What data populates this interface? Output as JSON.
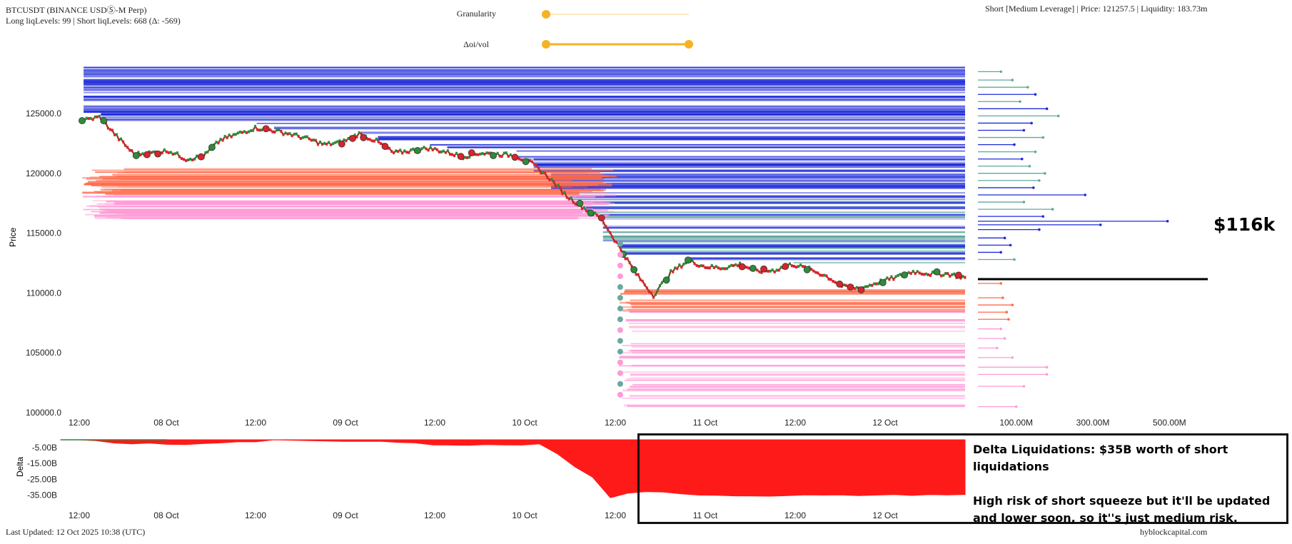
{
  "header": {
    "symbol": "BTCUSDT (BINANCE USDⓈ-M Perp)",
    "levels_summary": "Long liqLevels: 99 | Short liqLevels: 668 (Δ: -569)",
    "position_info": "Short [Medium Leverage] | Price: 121257.5 | Liquidity: 183.73m"
  },
  "controls": {
    "granularity_label": "Granularity",
    "granularity_value": 0.0,
    "oi_vol_label": "Δoi/vol",
    "oi_vol_range": [
      0.0,
      1.0
    ],
    "accent_color": "#f5b323"
  },
  "footer": {
    "last_updated": "Last Updated: 12 Oct 2025 10:38 (UTC)",
    "brand": "hyblockcapital.com"
  },
  "annotation": {
    "price_callout": "$116k",
    "delta_title": "Delta Liquidations: $35B worth of short liquidations",
    "delta_body": "High risk of short squeeze but it'll be updated and lower soon, so it''s just medium risk."
  },
  "chart_data": [
    {
      "type": "line",
      "title": "",
      "ylabel": "Price",
      "ylim": [
        100000,
        129000
      ],
      "yticks": [
        "125000.0",
        "120000.0",
        "115000.0",
        "110000.0",
        "105000.0",
        "100000.0"
      ],
      "xticks": [
        "12:00",
        "08 Oct",
        "12:00",
        "09 Oct",
        "12:00",
        "10 Oct",
        "12:00",
        "11 Oct",
        "12:00",
        "12 Oct"
      ],
      "series": [
        {
          "values": [
            124400,
            124700,
            123100,
            121600,
            121700,
            121900,
            121200,
            121400,
            122800,
            123300,
            123800,
            123600,
            123300,
            122900,
            122400,
            122600,
            123300,
            122700,
            121700,
            121900,
            122100,
            121800,
            121400,
            121700,
            121600,
            121500,
            120800,
            119600,
            118100,
            117100,
            116200,
            113900,
            111600,
            109800,
            111700,
            112700,
            112200,
            112100,
            112400,
            111800,
            111900,
            112400,
            112000,
            111400,
            110500,
            110400,
            110900,
            111300,
            111800,
            111600,
            111600,
            111300
          ]
        }
      ],
      "colors": {
        "up": "#2e8b3c",
        "down": "#d8242c",
        "short_liq": "#1f2bd8",
        "short_liq_light": "#5fa89c",
        "long_liq": "#ff6a4a",
        "long_liq_light": "#ff9ad6"
      }
    },
    {
      "type": "bar",
      "title": "",
      "xlabel": "Liquidity",
      "xticks": [
        "100.00M",
        "300.00M",
        "500.00M"
      ],
      "xlim": [
        0,
        600
      ],
      "marker_price": 111500,
      "levels": [
        {
          "price": 128500,
          "value": 60
        },
        {
          "price": 127800,
          "value": 90
        },
        {
          "price": 127200,
          "value": 130
        },
        {
          "price": 126600,
          "value": 150
        },
        {
          "price": 126000,
          "value": 110
        },
        {
          "price": 125400,
          "value": 180
        },
        {
          "price": 124800,
          "value": 210
        },
        {
          "price": 124200,
          "value": 140
        },
        {
          "price": 123600,
          "value": 120
        },
        {
          "price": 123000,
          "value": 170
        },
        {
          "price": 122400,
          "value": 95
        },
        {
          "price": 121800,
          "value": 150
        },
        {
          "price": 121200,
          "value": 115
        },
        {
          "price": 120600,
          "value": 135
        },
        {
          "price": 120000,
          "value": 175
        },
        {
          "price": 119400,
          "value": 160
        },
        {
          "price": 118800,
          "value": 145
        },
        {
          "price": 118200,
          "value": 280
        },
        {
          "price": 117600,
          "value": 120
        },
        {
          "price": 117000,
          "value": 195
        },
        {
          "price": 116400,
          "value": 170
        },
        {
          "price": 116000,
          "value": 495
        },
        {
          "price": 115700,
          "value": 320
        },
        {
          "price": 115300,
          "value": 160
        },
        {
          "price": 114600,
          "value": 70
        },
        {
          "price": 114000,
          "value": 85
        },
        {
          "price": 113400,
          "value": 60
        },
        {
          "price": 112800,
          "value": 95
        },
        {
          "price": 110800,
          "value": 60
        },
        {
          "price": 109600,
          "value": 65
        },
        {
          "price": 109000,
          "value": 90
        },
        {
          "price": 108400,
          "value": 75
        },
        {
          "price": 107800,
          "value": 80
        },
        {
          "price": 107000,
          "value": 60
        },
        {
          "price": 106200,
          "value": 70
        },
        {
          "price": 105400,
          "value": 50
        },
        {
          "price": 104600,
          "value": 90
        },
        {
          "price": 103800,
          "value": 180
        },
        {
          "price": 103200,
          "value": 180
        },
        {
          "price": 102200,
          "value": 120
        },
        {
          "price": 100500,
          "value": 100
        }
      ]
    },
    {
      "type": "area",
      "title": "",
      "ylabel": "Delta",
      "ylim": [
        -38,
        0
      ],
      "yticks": [
        "-5.00B",
        "-15.00B",
        "-25.00B",
        "-35.00B"
      ],
      "xticks": [
        "12:00",
        "08 Oct",
        "12:00",
        "09 Oct",
        "12:00",
        "10 Oct",
        "12:00",
        "11 Oct",
        "12:00",
        "12 Oct"
      ],
      "color": "#ff1a1a",
      "values": [
        0,
        0,
        -0.4,
        -2,
        -2.6,
        -2.3,
        -2.6,
        -2.9,
        -2.4,
        -2.1,
        -1.6,
        -1.2,
        -0.2,
        -0.5,
        -0.8,
        -0.9,
        -1.0,
        -1.1,
        -1.2,
        -1.4,
        -2.2,
        -3.5,
        -3.2,
        -3.3,
        -3.3,
        -3.2,
        -3.5,
        -2.6,
        -9,
        -17,
        -24,
        -37,
        -34,
        -33,
        -33,
        -34,
        -35,
        -35,
        -35.5,
        -35.5,
        -35.5,
        -35.2,
        -35.0,
        -35.0,
        -35.2,
        -35.2,
        -35.1,
        -35.0,
        -35.0,
        -35.0,
        -35.0,
        -34.8
      ]
    }
  ]
}
